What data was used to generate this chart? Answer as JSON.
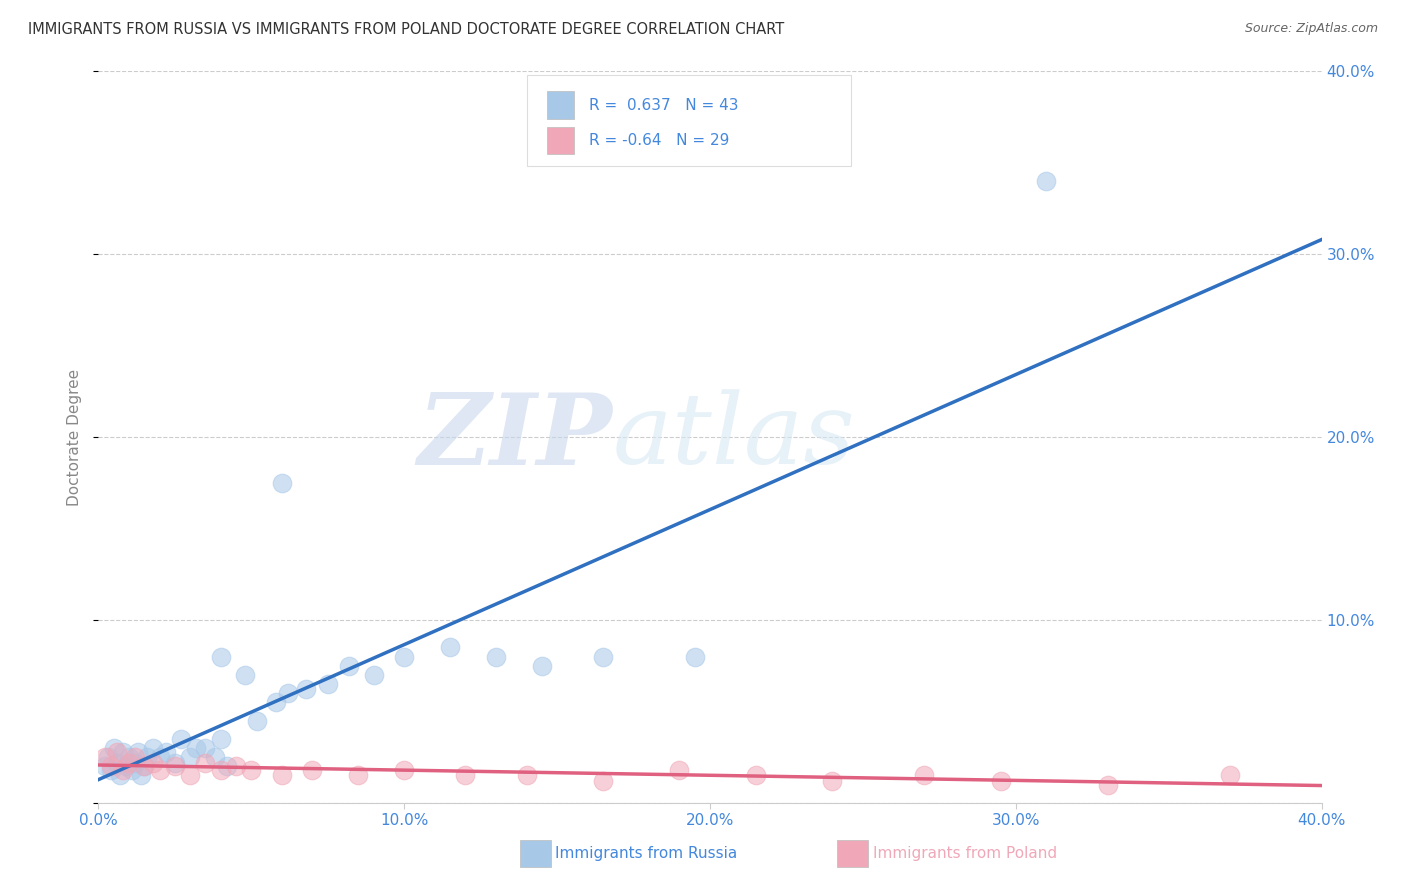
{
  "title": "IMMIGRANTS FROM RUSSIA VS IMMIGRANTS FROM POLAND DOCTORATE DEGREE CORRELATION CHART",
  "source": "Source: ZipAtlas.com",
  "ylabel": "Doctorate Degree",
  "xlabel_russia": "Immigrants from Russia",
  "xlabel_poland": "Immigrants from Poland",
  "watermark_zip": "ZIP",
  "watermark_atlas": "atlas",
  "russia_R": 0.637,
  "russia_N": 43,
  "poland_R": -0.64,
  "poland_N": 29,
  "xlim": [
    0.0,
    0.4
  ],
  "ylim": [
    0.0,
    0.4
  ],
  "xticks": [
    0.0,
    0.1,
    0.2,
    0.3,
    0.4
  ],
  "yticks": [
    0.0,
    0.1,
    0.2,
    0.3,
    0.4
  ],
  "xticklabels": [
    "0.0%",
    "10.0%",
    "20.0%",
    "30.0%",
    "40.0%"
  ],
  "yticklabels": [
    "",
    "10.0%",
    "20.0%",
    "30.0%",
    "40.0%"
  ],
  "color_russia": "#a8c8e8",
  "color_poland": "#f0a8b8",
  "color_trendline_russia": "#3070c0",
  "color_trendline_poland": "#e06080",
  "color_axis_labels": "#4488dd",
  "color_title": "#333333",
  "russia_x": [
    0.002,
    0.003,
    0.004,
    0.005,
    0.006,
    0.007,
    0.008,
    0.009,
    0.01,
    0.011,
    0.012,
    0.013,
    0.014,
    0.015,
    0.016,
    0.018,
    0.02,
    0.022,
    0.025,
    0.027,
    0.03,
    0.032,
    0.035,
    0.038,
    0.04,
    0.042,
    0.048,
    0.052,
    0.058,
    0.062,
    0.068,
    0.075,
    0.082,
    0.09,
    0.1,
    0.115,
    0.13,
    0.145,
    0.165,
    0.195,
    0.04,
    0.06,
    0.31
  ],
  "russia_y": [
    0.02,
    0.025,
    0.018,
    0.03,
    0.022,
    0.015,
    0.028,
    0.02,
    0.025,
    0.018,
    0.022,
    0.028,
    0.015,
    0.02,
    0.025,
    0.03,
    0.025,
    0.028,
    0.022,
    0.035,
    0.025,
    0.03,
    0.03,
    0.025,
    0.035,
    0.02,
    0.07,
    0.045,
    0.055,
    0.06,
    0.062,
    0.065,
    0.075,
    0.07,
    0.08,
    0.085,
    0.08,
    0.075,
    0.08,
    0.08,
    0.08,
    0.175,
    0.34
  ],
  "poland_x": [
    0.002,
    0.004,
    0.006,
    0.008,
    0.01,
    0.012,
    0.015,
    0.018,
    0.02,
    0.025,
    0.03,
    0.035,
    0.04,
    0.045,
    0.05,
    0.06,
    0.07,
    0.085,
    0.1,
    0.12,
    0.14,
    0.165,
    0.19,
    0.215,
    0.24,
    0.27,
    0.295,
    0.33,
    0.37
  ],
  "poland_y": [
    0.025,
    0.02,
    0.028,
    0.018,
    0.022,
    0.025,
    0.02,
    0.022,
    0.018,
    0.02,
    0.015,
    0.022,
    0.018,
    0.02,
    0.018,
    0.015,
    0.018,
    0.015,
    0.018,
    0.015,
    0.015,
    0.012,
    0.018,
    0.015,
    0.012,
    0.015,
    0.012,
    0.01,
    0.015
  ],
  "background_color": "#ffffff",
  "grid_color": "#cccccc"
}
